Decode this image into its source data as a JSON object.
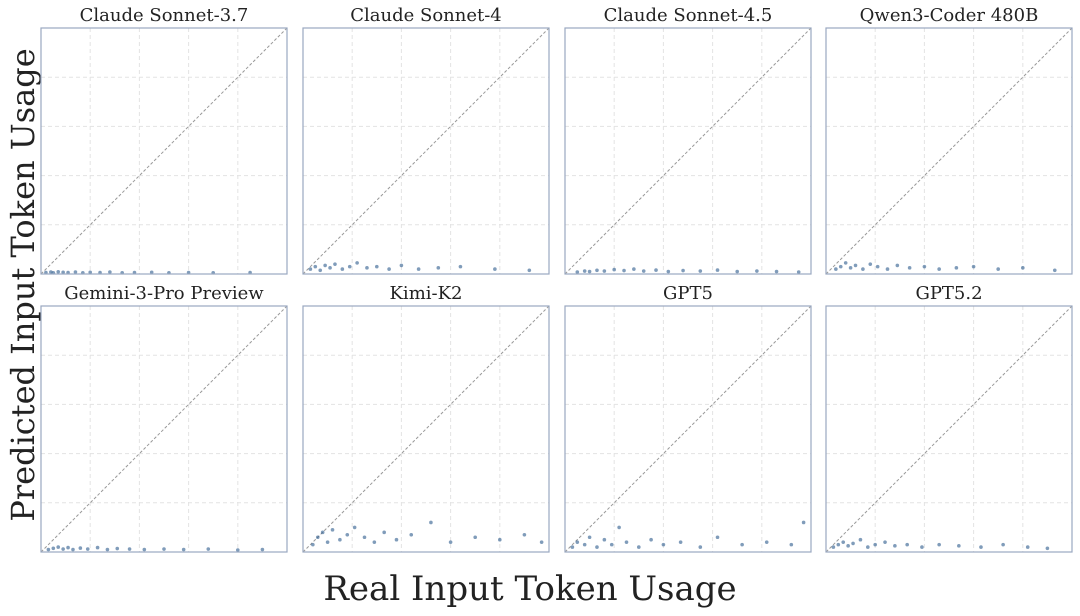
{
  "xlabel": "Real Input Token Usage",
  "ylabel": "Predicted Input Token Usage",
  "chart_data": [
    {
      "type": "scatter",
      "title": "Claude Sonnet-3.7",
      "color": "#2c5a8c",
      "grid": true,
      "xlim": [
        0,
        1
      ],
      "ylim": [
        0,
        1
      ],
      "xticks": [
        0,
        0.2,
        0.4,
        0.6,
        0.8,
        1
      ],
      "yticks": [
        0,
        0.2,
        0.4,
        0.6,
        0.8,
        1
      ],
      "x": [
        0.02,
        0.04,
        0.05,
        0.07,
        0.09,
        0.11,
        0.14,
        0.17,
        0.2,
        0.24,
        0.28,
        0.33,
        0.38,
        0.45,
        0.52,
        0.6,
        0.7,
        0.85
      ],
      "y": [
        0.006,
        0.008,
        0.005,
        0.009,
        0.007,
        0.006,
        0.008,
        0.005,
        0.007,
        0.006,
        0.008,
        0.005,
        0.006,
        0.007,
        0.005,
        0.006,
        0.005,
        0.006
      ]
    },
    {
      "type": "scatter",
      "title": "Claude Sonnet-4",
      "color": "#2c5a8c",
      "grid": true,
      "xlim": [
        0,
        1
      ],
      "ylim": [
        0,
        1
      ],
      "xticks": [
        0,
        0.2,
        0.4,
        0.6,
        0.8,
        1
      ],
      "yticks": [
        0,
        0.2,
        0.4,
        0.6,
        0.8,
        1
      ],
      "x": [
        0.03,
        0.05,
        0.07,
        0.09,
        0.11,
        0.13,
        0.16,
        0.19,
        0.22,
        0.26,
        0.3,
        0.35,
        0.4,
        0.47,
        0.55,
        0.64,
        0.78,
        0.92
      ],
      "y": [
        0.02,
        0.03,
        0.015,
        0.035,
        0.025,
        0.04,
        0.02,
        0.03,
        0.045,
        0.025,
        0.03,
        0.02,
        0.035,
        0.02,
        0.025,
        0.03,
        0.02,
        0.015
      ]
    },
    {
      "type": "scatter",
      "title": "Claude Sonnet-4.5",
      "color": "#2c5a8c",
      "grid": true,
      "xlim": [
        0,
        1
      ],
      "ylim": [
        0,
        1
      ],
      "xticks": [
        0,
        0.2,
        0.4,
        0.6,
        0.8,
        1
      ],
      "yticks": [
        0,
        0.2,
        0.4,
        0.6,
        0.8,
        1
      ],
      "x": [
        0.05,
        0.08,
        0.1,
        0.13,
        0.16,
        0.2,
        0.24,
        0.28,
        0.32,
        0.37,
        0.42,
        0.48,
        0.55,
        0.62,
        0.7,
        0.78,
        0.86,
        0.95
      ],
      "y": [
        0.008,
        0.012,
        0.01,
        0.015,
        0.012,
        0.018,
        0.014,
        0.02,
        0.012,
        0.016,
        0.01,
        0.014,
        0.012,
        0.016,
        0.01,
        0.012,
        0.01,
        0.008
      ]
    },
    {
      "type": "scatter",
      "title": "Qwen3-Coder 480B",
      "color": "#2c5a8c",
      "grid": true,
      "xlim": [
        0,
        1
      ],
      "ylim": [
        0,
        1
      ],
      "xticks": [
        0,
        0.2,
        0.4,
        0.6,
        0.8,
        1
      ],
      "yticks": [
        0,
        0.2,
        0.4,
        0.6,
        0.8,
        1
      ],
      "x": [
        0.04,
        0.06,
        0.08,
        0.1,
        0.12,
        0.15,
        0.18,
        0.21,
        0.25,
        0.29,
        0.34,
        0.4,
        0.46,
        0.53,
        0.6,
        0.7,
        0.8,
        0.93
      ],
      "y": [
        0.02,
        0.03,
        0.045,
        0.025,
        0.035,
        0.02,
        0.04,
        0.03,
        0.02,
        0.035,
        0.025,
        0.03,
        0.02,
        0.025,
        0.03,
        0.02,
        0.025,
        0.015
      ]
    },
    {
      "type": "scatter",
      "title": "Gemini-3-Pro Preview",
      "color": "#2c5a8c",
      "grid": true,
      "xlim": [
        0,
        1
      ],
      "ylim": [
        0,
        1
      ],
      "xticks": [
        0,
        0.2,
        0.4,
        0.6,
        0.8,
        1
      ],
      "yticks": [
        0,
        0.2,
        0.4,
        0.6,
        0.8,
        1
      ],
      "x": [
        0.03,
        0.05,
        0.07,
        0.09,
        0.11,
        0.13,
        0.16,
        0.19,
        0.23,
        0.27,
        0.31,
        0.36,
        0.42,
        0.5,
        0.58,
        0.68,
        0.8,
        0.9
      ],
      "y": [
        0.01,
        0.015,
        0.02,
        0.012,
        0.018,
        0.01,
        0.016,
        0.012,
        0.018,
        0.01,
        0.014,
        0.012,
        0.01,
        0.012,
        0.01,
        0.012,
        0.008,
        0.01
      ]
    },
    {
      "type": "scatter",
      "title": "Kimi-K2",
      "color": "#2c5a8c",
      "grid": true,
      "xlim": [
        0,
        1
      ],
      "ylim": [
        0,
        1
      ],
      "xticks": [
        0,
        0.2,
        0.4,
        0.6,
        0.8,
        1
      ],
      "yticks": [
        0,
        0.2,
        0.4,
        0.6,
        0.8,
        1
      ],
      "x": [
        0.04,
        0.06,
        0.08,
        0.1,
        0.12,
        0.15,
        0.18,
        0.21,
        0.25,
        0.29,
        0.33,
        0.38,
        0.44,
        0.52,
        0.6,
        0.7,
        0.8,
        0.9,
        0.97
      ],
      "y": [
        0.03,
        0.06,
        0.08,
        0.04,
        0.09,
        0.05,
        0.07,
        0.1,
        0.06,
        0.04,
        0.08,
        0.05,
        0.07,
        0.12,
        0.04,
        0.06,
        0.05,
        0.07,
        0.04
      ]
    },
    {
      "type": "scatter",
      "title": "GPT5",
      "color": "#2c5a8c",
      "grid": true,
      "xlim": [
        0,
        1
      ],
      "ylim": [
        0,
        1
      ],
      "xticks": [
        0,
        0.2,
        0.4,
        0.6,
        0.8,
        1
      ],
      "yticks": [
        0,
        0.2,
        0.4,
        0.6,
        0.8,
        1
      ],
      "x": [
        0.03,
        0.05,
        0.08,
        0.1,
        0.13,
        0.16,
        0.19,
        0.22,
        0.25,
        0.3,
        0.35,
        0.4,
        0.47,
        0.55,
        0.62,
        0.72,
        0.82,
        0.92,
        0.97
      ],
      "y": [
        0.02,
        0.04,
        0.03,
        0.06,
        0.02,
        0.05,
        0.03,
        0.1,
        0.04,
        0.02,
        0.05,
        0.03,
        0.04,
        0.02,
        0.06,
        0.03,
        0.04,
        0.03,
        0.12
      ]
    },
    {
      "type": "scatter",
      "title": "GPT5.2",
      "color": "#2c5a8c",
      "grid": true,
      "xlim": [
        0,
        1
      ],
      "ylim": [
        0,
        1
      ],
      "xticks": [
        0,
        0.2,
        0.4,
        0.6,
        0.8,
        1
      ],
      "yticks": [
        0,
        0.2,
        0.4,
        0.6,
        0.8,
        1
      ],
      "x": [
        0.03,
        0.05,
        0.07,
        0.09,
        0.11,
        0.14,
        0.17,
        0.2,
        0.24,
        0.28,
        0.33,
        0.39,
        0.46,
        0.54,
        0.63,
        0.72,
        0.82,
        0.9
      ],
      "y": [
        0.02,
        0.03,
        0.04,
        0.025,
        0.035,
        0.05,
        0.02,
        0.03,
        0.04,
        0.025,
        0.03,
        0.02,
        0.03,
        0.025,
        0.02,
        0.03,
        0.02,
        0.015
      ]
    }
  ]
}
